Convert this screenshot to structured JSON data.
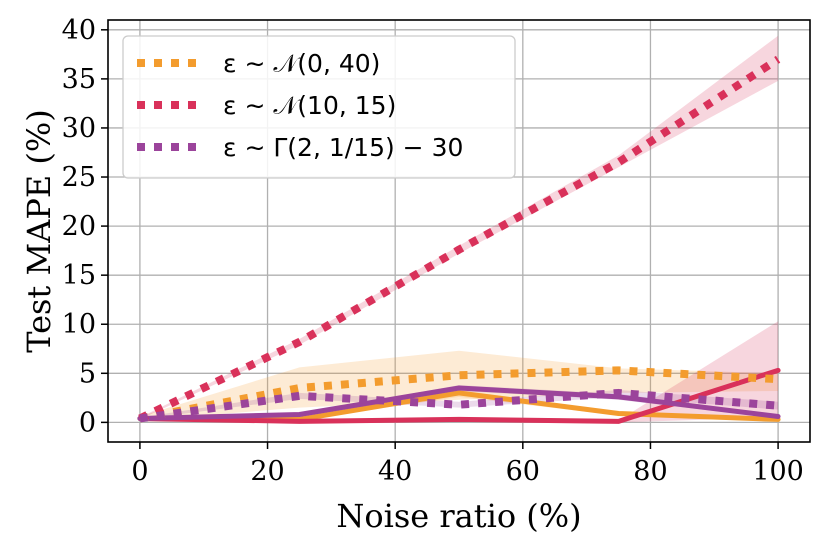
{
  "chart_data": {
    "type": "line",
    "title": "",
    "xlabel": "Noise ratio (%)",
    "ylabel": "Test MAPE (%)",
    "xlim": [
      -5,
      105
    ],
    "ylim": [
      -2,
      41
    ],
    "xticks": [
      0,
      20,
      40,
      60,
      80,
      100
    ],
    "yticks": [
      0,
      5,
      10,
      15,
      20,
      25,
      30,
      35,
      40
    ],
    "xtick_labels": [
      "0",
      "20",
      "40",
      "60",
      "80",
      "100"
    ],
    "ytick_labels": [
      "0",
      "5",
      "10",
      "15",
      "20",
      "25",
      "30",
      "35",
      "40"
    ],
    "grid": true,
    "legend_position": "upper-left",
    "x": [
      0,
      25,
      50,
      75,
      100
    ],
    "series": [
      {
        "name": "ε ∼ 𝒩(0, 40)",
        "legend_label": "ε ∼ 𝒩(0, 40)",
        "color": "#f39c2e",
        "style": "dotted",
        "values": [
          0.4,
          3.5,
          4.8,
          5.3,
          4.4
        ],
        "band_low": [
          0.2,
          1.5,
          2.3,
          3.0,
          3.2
        ],
        "band_high": [
          0.6,
          5.6,
          7.3,
          5.5,
          5.0
        ]
      },
      {
        "name": "ε ∼ 𝒩(0, 40) solid",
        "color": "#f39c2e",
        "style": "solid",
        "values": [
          0.4,
          0.3,
          3.0,
          0.9,
          0.3
        ],
        "band_low": [
          0.3,
          0.2,
          2.6,
          0.7,
          0.2
        ],
        "band_high": [
          0.5,
          0.4,
          3.3,
          1.1,
          0.4
        ]
      },
      {
        "name": "ε ∼ 𝒩(10, 15)",
        "legend_label": "ε ∼ 𝒩(10, 15)",
        "color": "#d9315a",
        "style": "dotted",
        "values": [
          0.4,
          8.2,
          17.6,
          26.5,
          37.0
        ],
        "band_low": [
          0.3,
          7.9,
          17.2,
          26.0,
          34.8
        ],
        "band_high": [
          0.5,
          8.5,
          18.0,
          27.2,
          39.4
        ]
      },
      {
        "name": "ε ∼ 𝒩(10, 15) solid",
        "color": "#d9315a",
        "style": "solid",
        "values": [
          0.4,
          0.1,
          0.3,
          0.1,
          5.3
        ],
        "band_low": [
          0.3,
          0.0,
          0.2,
          0.0,
          0.5
        ],
        "band_high": [
          0.5,
          0.2,
          0.4,
          0.2,
          10.3
        ]
      },
      {
        "name": "ε ∼ Γ(2, 1/15) − 30",
        "legend_label": "ε ∼ Γ(2, 1/15) − 30",
        "color": "#9b449b",
        "style": "dotted",
        "values": [
          0.4,
          2.7,
          1.8,
          3.0,
          1.7
        ],
        "band_low": [
          0.3,
          2.4,
          1.5,
          2.6,
          1.3
        ],
        "band_high": [
          0.5,
          3.0,
          2.1,
          3.3,
          2.1
        ]
      },
      {
        "name": "ε ∼ Γ(2, 1/15) − 30 solid",
        "color": "#9b449b",
        "style": "solid",
        "values": [
          0.4,
          0.8,
          3.5,
          2.6,
          0.6
        ],
        "band_low": [
          0.3,
          0.7,
          3.2,
          2.3,
          0.4
        ],
        "band_high": [
          0.5,
          0.9,
          3.8,
          2.9,
          0.8
        ]
      }
    ]
  }
}
